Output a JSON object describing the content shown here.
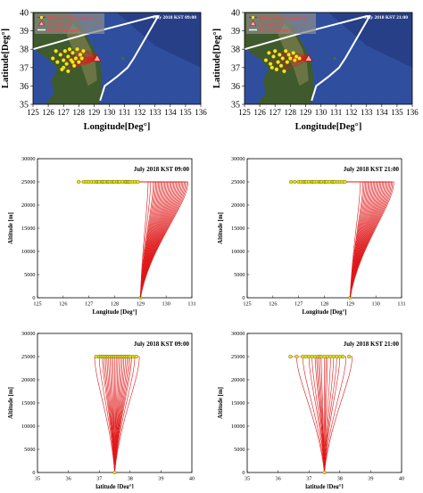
{
  "chart_data": [
    {
      "id": "map-0900",
      "type": "map",
      "title": "July 2018 KST 09:00",
      "xlabel": "Longitude[Deg°]",
      "ylabel": "Latitude[Deg°]",
      "xlim": [
        125,
        136
      ],
      "ylim": [
        35,
        40
      ],
      "xticks": [
        "125",
        "126",
        "127",
        "128",
        "129",
        "130",
        "131",
        "132",
        "133",
        "134",
        "135",
        "136"
      ],
      "yticks": [
        "35",
        "36",
        "37",
        "38",
        "39",
        "40"
      ],
      "legend": [
        "Balloon flight trajectory",
        "Launch site",
        "R.O.K Airspace"
      ],
      "legend_position": "top-left",
      "launch_site": [
        129.2,
        37.5
      ],
      "airspace": [
        [
          125.0,
          38.0
        ],
        [
          128.4,
          38.8
        ],
        [
          133.0,
          39.8
        ],
        [
          133.2,
          39.8
        ],
        [
          131.6,
          37.5
        ],
        [
          131.2,
          37.0
        ],
        [
          130.5,
          36.5
        ],
        [
          129.7,
          36.0
        ],
        [
          129.4,
          35.2
        ]
      ],
      "landing_points": [
        [
          126.3,
          37.5
        ],
        [
          126.5,
          37.9
        ],
        [
          126.6,
          37.3
        ],
        [
          126.8,
          37.7
        ],
        [
          127.0,
          37.4
        ],
        [
          127.1,
          37.9
        ],
        [
          127.2,
          37.2
        ],
        [
          127.3,
          37.6
        ],
        [
          127.4,
          38.0
        ],
        [
          127.5,
          37.4
        ],
        [
          127.6,
          37.8
        ],
        [
          127.7,
          37.1
        ],
        [
          127.8,
          37.5
        ],
        [
          127.9,
          38.0
        ],
        [
          128.0,
          37.3
        ],
        [
          128.1,
          37.7
        ],
        [
          128.2,
          37.5
        ],
        [
          128.3,
          37.9
        ],
        [
          127.0,
          37.0
        ],
        [
          126.9,
          36.9
        ],
        [
          127.3,
          36.8
        ],
        [
          127.6,
          37.3
        ]
      ]
    },
    {
      "id": "map-2100",
      "type": "map",
      "title": "July 2018 KST 21:00",
      "xlabel": "Longitude[Deg°]",
      "ylabel": "Latitude[Deg°]",
      "xlim": [
        125,
        136
      ],
      "ylim": [
        35,
        40
      ],
      "xticks": [
        "125",
        "126",
        "127",
        "128",
        "129",
        "130",
        "131",
        "132",
        "133",
        "134",
        "135",
        "136"
      ],
      "yticks": [
        "35",
        "36",
        "37",
        "38",
        "39",
        "40"
      ],
      "legend": [
        "Balloon flight trajectory",
        "Launch site",
        "R.O.K Airspace"
      ],
      "legend_position": "top-left",
      "launch_site": [
        129.2,
        37.5
      ],
      "airspace": [
        [
          125.0,
          38.0
        ],
        [
          128.4,
          38.8
        ],
        [
          133.0,
          39.8
        ],
        [
          133.2,
          39.8
        ],
        [
          131.6,
          37.5
        ],
        [
          131.2,
          37.0
        ],
        [
          130.5,
          36.5
        ],
        [
          129.7,
          36.0
        ],
        [
          129.4,
          35.2
        ]
      ],
      "landing_points": [
        [
          126.4,
          37.4
        ],
        [
          126.6,
          37.8
        ],
        [
          126.7,
          37.2
        ],
        [
          126.9,
          37.6
        ],
        [
          127.0,
          37.9
        ],
        [
          127.2,
          37.3
        ],
        [
          127.3,
          37.7
        ],
        [
          127.4,
          37.1
        ],
        [
          127.5,
          37.5
        ],
        [
          127.7,
          37.9
        ],
        [
          127.8,
          37.3
        ],
        [
          127.9,
          37.7
        ],
        [
          128.0,
          37.5
        ],
        [
          128.2,
          37.8
        ],
        [
          128.3,
          37.4
        ],
        [
          127.1,
          36.9
        ],
        [
          126.8,
          37.0
        ],
        [
          127.6,
          36.8
        ],
        [
          128.4,
          37.6
        ],
        [
          128.6,
          37.5
        ]
      ]
    },
    {
      "id": "lon-0900",
      "type": "line",
      "title": "July 2018 KST 09:00",
      "xlabel": "Longitude [Deg°]",
      "ylabel": "Altitude [m]",
      "xlim": [
        125,
        131
      ],
      "ylim": [
        0,
        30000
      ],
      "xticks": [
        "125",
        "126",
        "127",
        "128",
        "129",
        "130",
        "131"
      ],
      "yticks": [
        "0",
        "5000",
        "10000",
        "15000",
        "20000",
        "25000",
        "30000"
      ],
      "launch": [
        129.0,
        0
      ],
      "float_altitude": 25000,
      "end_x": [
        126.6,
        126.8,
        126.9,
        127.0,
        127.1,
        127.2,
        127.3,
        127.35,
        127.4,
        127.5,
        127.55,
        127.6,
        127.7,
        127.75,
        127.8,
        127.9,
        127.95,
        128.0,
        128.1,
        128.15,
        128.2,
        128.3,
        128.4,
        128.45,
        128.5,
        128.55,
        128.6,
        128.7,
        128.8,
        128.9
      ],
      "turn_x": [
        129.3,
        129.4,
        129.5,
        129.55,
        129.6,
        129.65,
        129.7,
        129.75,
        129.8,
        129.85,
        129.9,
        129.95,
        130.0,
        130.05,
        130.1,
        130.15,
        130.2,
        130.25,
        130.3,
        130.35,
        130.4,
        130.45,
        130.5,
        130.55,
        130.6,
        130.65,
        130.7,
        130.75,
        130.8,
        130.85
      ]
    },
    {
      "id": "lon-2100",
      "type": "line",
      "title": "July 2018 KST 21:00",
      "xlabel": "Longitude [Deg°]",
      "ylabel": "Altitude [m]",
      "xlim": [
        125,
        131
      ],
      "ylim": [
        0,
        30000
      ],
      "xticks": [
        "125",
        "126",
        "127",
        "128",
        "129",
        "130",
        "131"
      ],
      "yticks": [
        "0",
        "5000",
        "10000",
        "15000",
        "20000",
        "25000",
        "30000"
      ],
      "launch": [
        129.0,
        0
      ],
      "float_altitude": 25000,
      "end_x": [
        126.7,
        126.85,
        127.0,
        127.1,
        127.2,
        127.25,
        127.3,
        127.4,
        127.5,
        127.55,
        127.6,
        127.7,
        127.8,
        127.85,
        127.9,
        128.0,
        128.05,
        128.1,
        128.2,
        128.3,
        128.35,
        128.4,
        128.5,
        128.6,
        128.7,
        128.8
      ],
      "turn_x": [
        129.4,
        129.5,
        129.55,
        129.6,
        129.65,
        129.7,
        129.75,
        129.8,
        129.85,
        129.9,
        129.95,
        130.0,
        130.05,
        130.1,
        130.15,
        130.2,
        130.25,
        130.3,
        130.35,
        130.4,
        130.45,
        130.5,
        130.55,
        130.6,
        130.65,
        130.7
      ]
    },
    {
      "id": "lat-0900",
      "type": "line",
      "title": "July 2018 KST 09:00",
      "xlabel": "latitude [Deg°]",
      "ylabel": "Altitude [m]",
      "xlim": [
        35,
        40
      ],
      "ylim": [
        0,
        30000
      ],
      "xticks": [
        "35",
        "36",
        "37",
        "38",
        "39",
        "40"
      ],
      "yticks": [
        "0",
        "5000",
        "10000",
        "15000",
        "20000",
        "25000",
        "30000"
      ],
      "launch": [
        37.5,
        0
      ],
      "float_altitude": 25000,
      "end_x": [
        36.9,
        37.0,
        37.05,
        37.1,
        37.15,
        37.2,
        37.25,
        37.3,
        37.35,
        37.4,
        37.45,
        37.5,
        37.55,
        37.6,
        37.65,
        37.7,
        37.75,
        37.8,
        37.85,
        37.9,
        37.95,
        38.0,
        38.1,
        38.2
      ],
      "turn_x": [
        36.85,
        37.0,
        37.1,
        37.15,
        37.2,
        37.25,
        37.3,
        37.35,
        37.4,
        37.45,
        37.5,
        37.55,
        37.6,
        37.65,
        37.7,
        37.75,
        37.8,
        37.85,
        37.9,
        37.95,
        38.0,
        38.05,
        38.15,
        38.3
      ]
    },
    {
      "id": "lat-2100",
      "type": "line",
      "title": "July 2018 KST 21:00",
      "xlabel": "latitude [Deg°]",
      "ylabel": "Altitude [m]",
      "xlim": [
        35,
        40
      ],
      "ylim": [
        0,
        30000
      ],
      "xticks": [
        "35",
        "36",
        "37",
        "38",
        "39",
        "40"
      ],
      "yticks": [
        "0",
        "5000",
        "10000",
        "15000",
        "20000",
        "25000",
        "30000"
      ],
      "launch": [
        37.5,
        0
      ],
      "float_altitude": 25000,
      "end_x": [
        36.4,
        36.6,
        36.8,
        36.9,
        37.0,
        37.1,
        37.2,
        37.3,
        37.35,
        37.4,
        37.5,
        37.6,
        37.7,
        37.8,
        37.9,
        38.0,
        38.1,
        38.3
      ],
      "turn_x": [
        36.6,
        36.8,
        37.0,
        37.1,
        37.2,
        37.25,
        37.3,
        37.35,
        37.4,
        37.5,
        37.55,
        37.6,
        37.7,
        37.8,
        37.9,
        38.0,
        38.2,
        38.4
      ]
    }
  ]
}
